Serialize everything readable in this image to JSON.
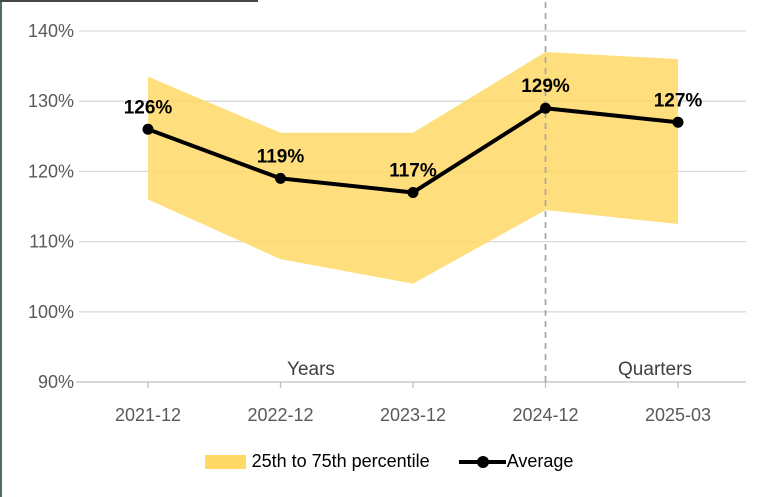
{
  "chart_data": {
    "type": "line",
    "title": "",
    "categories": [
      "2021-12",
      "2022-12",
      "2023-12",
      "2024-12",
      "2025-03"
    ],
    "series": [
      {
        "name": "25th to 75th percentile",
        "type": "band",
        "lower": [
          116,
          107.5,
          104,
          114.5,
          112.5
        ],
        "upper": [
          133.5,
          125.5,
          125.5,
          137,
          136
        ],
        "color": "#FFD966"
      },
      {
        "name": "Average",
        "type": "line",
        "values": [
          126,
          119,
          117,
          129,
          127
        ],
        "data_labels": [
          "126%",
          "119%",
          "117%",
          "129%",
          "127%"
        ],
        "color": "#000000"
      }
    ],
    "ylim": [
      90,
      140
    ],
    "ytick_labels": [
      "140%",
      "130%",
      "120%",
      "110%",
      "100%",
      "90%"
    ],
    "grid": "horizontal",
    "legend_position": "bottom",
    "annotations": [
      {
        "text": "Years",
        "side": "left-of-divider"
      },
      {
        "text": "Quarters",
        "side": "right-of-divider"
      }
    ],
    "divider": {
      "style": "dashed",
      "at_category": "2024-12"
    }
  },
  "legend": {
    "items": [
      {
        "label": "25th to 75th percentile",
        "swatch": "band"
      },
      {
        "label": "Average",
        "swatch": "line-marker"
      }
    ]
  },
  "colors": {
    "background": "#FFFFFF",
    "band": "#FFD966",
    "average_line": "#000000",
    "gridline": "#D9D9D9",
    "axis_line": "#BFBFBF",
    "divider": "#A6A6A6",
    "axis_text": "#595959",
    "annotation_text": "#404040",
    "data_label_text": "#000000",
    "left_edge": "#4A7058",
    "top_edge": "#474747"
  }
}
